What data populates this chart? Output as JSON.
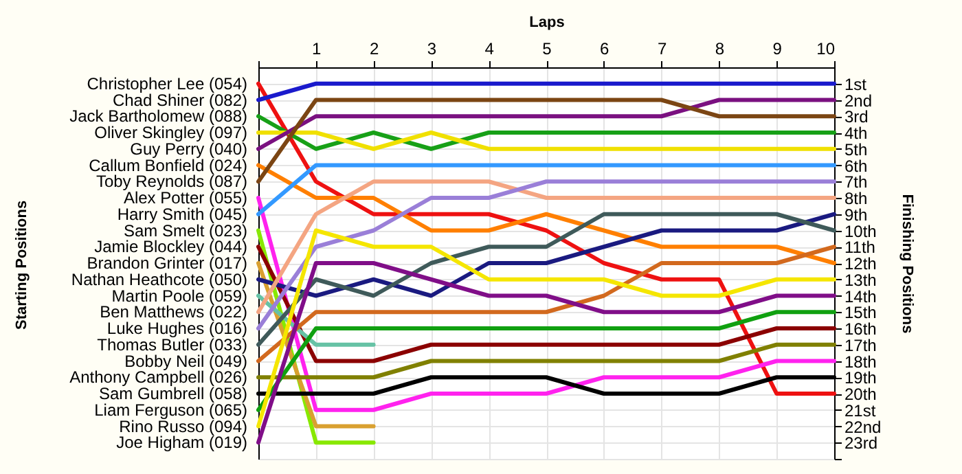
{
  "chart_data": {
    "type": "line",
    "xlabel": "Laps",
    "ylabel": "Finishing Positions",
    "annotations": [
      "Starting Positions"
    ],
    "x": [
      0,
      1,
      2,
      3,
      4,
      5,
      6,
      7,
      8,
      9,
      10
    ],
    "xlim": [
      0,
      10
    ],
    "xticks": [
      {
        "value": 0,
        "label": null
      },
      1,
      2,
      3,
      4,
      5,
      6,
      7,
      8,
      9,
      10
    ],
    "ylim": [
      24,
      0
    ],
    "yticks": [
      {
        "value": 1,
        "label": "1st"
      },
      {
        "value": 2,
        "label": "2nd"
      },
      {
        "value": 3,
        "label": "3rd"
      },
      {
        "value": 4,
        "label": "4th"
      },
      {
        "value": 5,
        "label": "5th"
      },
      {
        "value": 6,
        "label": "6th"
      },
      {
        "value": 7,
        "label": "7th"
      },
      {
        "value": 8,
        "label": "8th"
      },
      {
        "value": 9,
        "label": "9th"
      },
      {
        "value": 10,
        "label": "10th"
      },
      {
        "value": 11,
        "label": "11th"
      },
      {
        "value": 12,
        "label": "12th"
      },
      {
        "value": 13,
        "label": "13th"
      },
      {
        "value": 14,
        "label": "14th"
      },
      {
        "value": 15,
        "label": "15th"
      },
      {
        "value": 16,
        "label": "16th"
      },
      {
        "value": 17,
        "label": "17th"
      },
      {
        "value": 18,
        "label": "18th"
      },
      {
        "value": 19,
        "label": "19th"
      },
      {
        "value": 20,
        "label": "20th"
      },
      {
        "value": 21,
        "label": "21st"
      },
      {
        "value": 22,
        "label": "22nd"
      },
      {
        "value": 23,
        "label": "23rd"
      },
      {
        "value": 24,
        "label": null
      }
    ],
    "grid": true,
    "series": [
      {
        "name": "Christopher Lee (054)",
        "color": "#ee1111",
        "values": [
          1,
          7,
          9,
          9,
          9,
          10,
          12,
          13,
          13,
          20,
          20
        ]
      },
      {
        "name": "Chad Shiner (082)",
        "color": "#1a1acc",
        "values": [
          2,
          1,
          1,
          1,
          1,
          1,
          1,
          1,
          1,
          1,
          1
        ]
      },
      {
        "name": "Jack Bartholomew (088)",
        "color": "#17a017",
        "values": [
          3,
          5,
          4,
          5,
          4,
          4,
          4,
          4,
          4,
          4,
          4
        ]
      },
      {
        "name": "Oliver Skingley (097)",
        "color": "#f0e000",
        "values": [
          4,
          4,
          5,
          4,
          5,
          5,
          5,
          5,
          5,
          5,
          5
        ]
      },
      {
        "name": "Guy Perry (040)",
        "color": "#7a1080",
        "values": [
          5,
          3,
          3,
          3,
          3,
          3,
          3,
          3,
          2,
          2,
          2
        ]
      },
      {
        "name": "Callum Bonfield (024)",
        "color": "#ff7f00",
        "values": [
          6,
          8,
          8,
          10,
          10,
          9,
          10,
          11,
          11,
          11,
          12
        ]
      },
      {
        "name": "Toby Reynolds (087)",
        "color": "#7b4513",
        "values": [
          7,
          2,
          2,
          2,
          2,
          2,
          2,
          2,
          3,
          3,
          3
        ]
      },
      {
        "name": "Alex Potter (055)",
        "color": "#ff22ee",
        "values": [
          8,
          21,
          21,
          20,
          20,
          20,
          19,
          19,
          19,
          18,
          18
        ]
      },
      {
        "name": "Harry Smith (045)",
        "color": "#3399ff",
        "values": [
          9,
          6,
          6,
          6,
          6,
          6,
          6,
          6,
          6,
          6,
          6
        ]
      },
      {
        "name": "Sam Smelt (023)",
        "color": "#88e800",
        "values": [
          10,
          23,
          23,
          null,
          null,
          null,
          null,
          null,
          null,
          null,
          null
        ]
      },
      {
        "name": "Jamie Blockley (044)",
        "color": "#8b0000",
        "values": [
          11,
          18,
          18,
          17,
          17,
          17,
          17,
          17,
          17,
          16,
          16
        ]
      },
      {
        "name": "Brandon Grinter (017)",
        "color": "#d9a030",
        "values": [
          12,
          22,
          22,
          null,
          null,
          null,
          null,
          null,
          null,
          null,
          null
        ]
      },
      {
        "name": "Nathan Heathcote (050)",
        "color": "#1a1a80",
        "values": [
          13,
          14,
          13,
          14,
          12,
          12,
          11,
          10,
          10,
          10,
          9
        ]
      },
      {
        "name": "Martin Poole (059)",
        "color": "#66c2a5",
        "values": [
          14,
          17,
          17,
          null,
          null,
          null,
          null,
          null,
          null,
          null,
          null
        ]
      },
      {
        "name": "Ben Matthews (022)",
        "color": "#f4a582",
        "values": [
          15,
          9,
          7,
          7,
          7,
          8,
          8,
          8,
          8,
          8,
          8
        ]
      },
      {
        "name": "Luke Hughes (016)",
        "color": "#9a7fd8",
        "values": [
          16,
          11,
          10,
          8,
          8,
          7,
          7,
          7,
          7,
          7,
          7
        ]
      },
      {
        "name": "Thomas Butler (033)",
        "color": "#3f5a5a",
        "values": [
          17,
          13,
          14,
          12,
          11,
          11,
          9,
          9,
          9,
          9,
          10
        ]
      },
      {
        "name": "Bobby Neil (049)",
        "color": "#d2691e",
        "values": [
          18,
          15,
          15,
          15,
          15,
          15,
          14,
          12,
          12,
          12,
          11
        ]
      },
      {
        "name": "Anthony Campbell (026)",
        "color": "#808000",
        "values": [
          19,
          19,
          19,
          18,
          18,
          18,
          18,
          18,
          18,
          17,
          17
        ]
      },
      {
        "name": "Sam Gumbrell (058)",
        "color": "#000000",
        "values": [
          20,
          20,
          20,
          19,
          19,
          19,
          20,
          20,
          20,
          19,
          19
        ]
      },
      {
        "name": "Liam Ferguson (065)",
        "color": "#10a010",
        "values": [
          21,
          16,
          16,
          16,
          16,
          16,
          16,
          16,
          16,
          15,
          15
        ]
      },
      {
        "name": "Rino Russo (094)",
        "color": "#f5e600",
        "values": [
          22,
          10,
          11,
          11,
          13,
          13,
          13,
          14,
          14,
          13,
          13
        ]
      },
      {
        "name": "Joe Higham (019)",
        "color": "#800e88",
        "values": [
          23,
          12,
          12,
          13,
          14,
          14,
          15,
          15,
          15,
          14,
          14
        ]
      }
    ]
  }
}
